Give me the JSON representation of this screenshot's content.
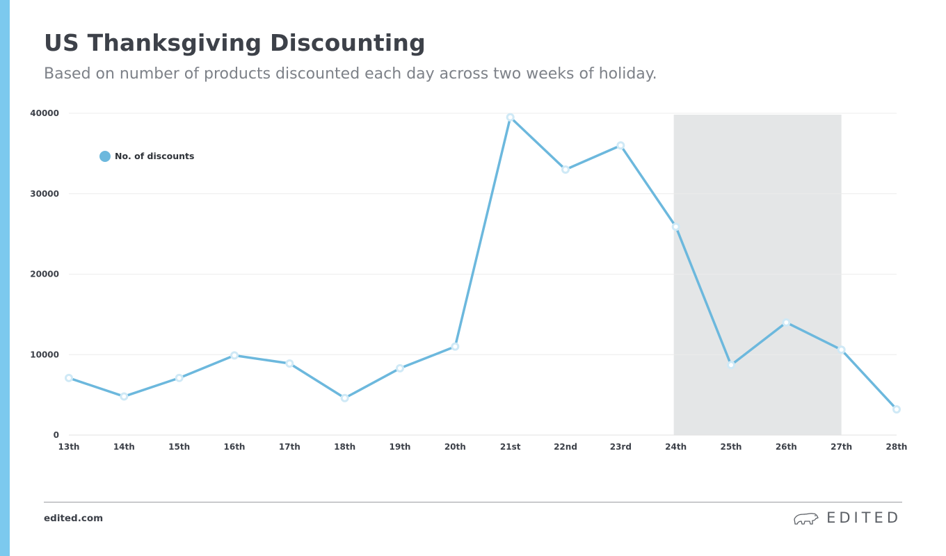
{
  "colors": {
    "accent": "#7cc9ee",
    "line": "#6cb8dd",
    "marker_fill": "#ffffff",
    "marker_stroke": "#cfe9f6",
    "highlight": "#e4e6e7",
    "grid": "#ececec"
  },
  "footer": {
    "url": "edited.com",
    "brand": "EDITED",
    "brand_icon": "polar-bear-icon"
  },
  "chart_data": {
    "type": "line",
    "title": "US Thanksgiving Discounting",
    "subtitle": "Based on number of products discounted each day across two weeks of holiday.",
    "xlabel": "",
    "ylabel": "",
    "categories": [
      "13th",
      "14th",
      "15th",
      "16th",
      "17th",
      "18th",
      "19th",
      "20th",
      "21st",
      "22nd",
      "23rd",
      "24th",
      "25th",
      "26th",
      "27th",
      "28th"
    ],
    "series": [
      {
        "name": "No. of discounts",
        "values": [
          7100,
          4800,
          7100,
          9900,
          8900,
          4600,
          8300,
          11000,
          39500,
          33000,
          36000,
          25900,
          8700,
          14000,
          10600,
          3200
        ]
      }
    ],
    "ylim": [
      0,
      40000
    ],
    "yticks": [
      0,
      10000,
      20000,
      30000,
      40000
    ],
    "highlight_range": [
      "24th",
      "27th"
    ],
    "grid": true,
    "legend": "top-left"
  }
}
